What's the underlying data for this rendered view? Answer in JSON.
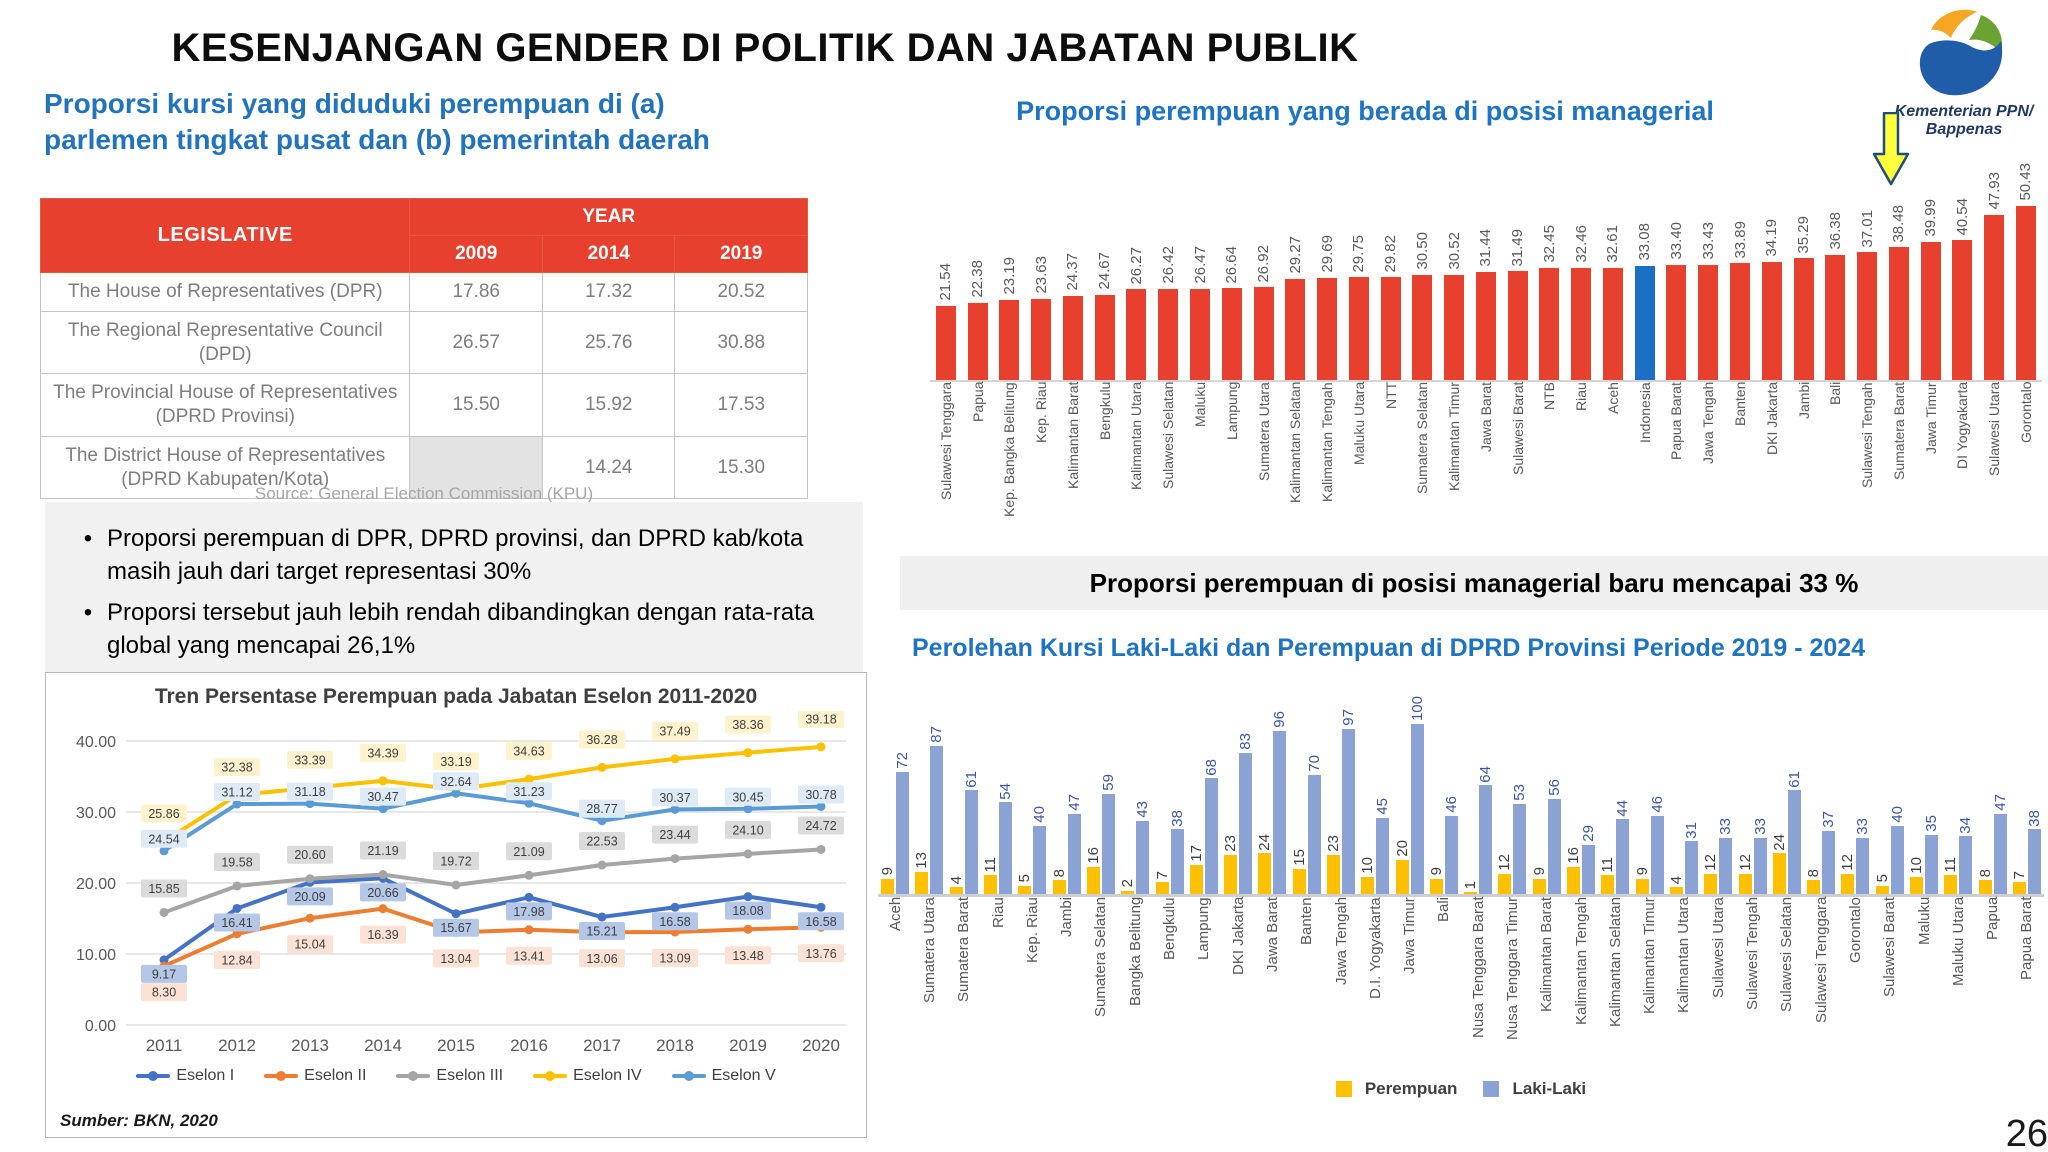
{
  "title": "KESENJANGAN GENDER DI POLITIK DAN JABATAN PUBLIK",
  "logo": {
    "line1": "Kementerian PPN/",
    "line2": "Bappenas"
  },
  "page_number": "26",
  "left": {
    "heading_line1": "Proporsi kursi yang diduduki perempuan di  (a)",
    "heading_line2": "parlemen tingkat pusat dan (b) pemerintah daerah",
    "table": {
      "col_header": "LEGISLATIVE",
      "year_header": "YEAR",
      "years": [
        "2009",
        "2014",
        "2019"
      ],
      "rows": [
        {
          "label": "The House of Representatives (DPR)",
          "values": [
            "17.86",
            "17.32",
            "20.52"
          ]
        },
        {
          "label": "The Regional Representative Council (DPD)",
          "values": [
            "26.57",
            "25.76",
            "30.88"
          ]
        },
        {
          "label": "The Provincial House of Representatives (DPRD Provinsi)",
          "values": [
            "15.50",
            "15.92",
            "17.53"
          ]
        },
        {
          "label": "The District House of Representatives (DPRD Kabupaten/Kota)",
          "values": [
            "",
            "14.24",
            "15.30"
          ]
        }
      ],
      "source": "Source: General Election Commission (KPU)"
    },
    "bullets": [
      "Proporsi perempuan di DPR, DPRD provinsi, dan DPRD kab/kota masih jauh dari target representasi 30%",
      "Proporsi tersebut jauh lebih rendah dibandingkan dengan rata-rata global yang mencapai 26,1%"
    ]
  },
  "right": {
    "banner": "Proporsi perempuan di posisi managerial baru mencapai 33 %"
  },
  "chart_data": [
    {
      "type": "line",
      "title": "Tren Persentase Perempuan pada Jabatan Eselon 2011-2020",
      "x": [
        "2011",
        "2012",
        "2013",
        "2014",
        "2015",
        "2016",
        "2017",
        "2018",
        "2019",
        "2020"
      ],
      "ylim": [
        0,
        40
      ],
      "yticks": [
        0,
        10,
        20,
        30,
        40
      ],
      "grid": true,
      "legend_position": "bottom",
      "source_note": "Sumber: BKN, 2020",
      "series": [
        {
          "name": "Eselon I",
          "color": "#4472C4",
          "label_bg": "#B4C7E7",
          "values": [
            9.17,
            16.41,
            20.09,
            20.66,
            15.67,
            17.98,
            15.21,
            16.58,
            18.08,
            16.58
          ]
        },
        {
          "name": "Eselon II",
          "color": "#ED7D31",
          "label_bg": "#FBE2D5",
          "values": [
            8.3,
            12.84,
            15.04,
            16.39,
            13.04,
            13.41,
            13.06,
            13.09,
            13.48,
            13.76
          ]
        },
        {
          "name": "Eselon III",
          "color": "#A5A5A5",
          "label_bg": "#DBDBDB",
          "values": [
            15.85,
            19.58,
            20.6,
            21.19,
            19.72,
            21.09,
            22.53,
            23.44,
            24.1,
            24.72
          ]
        },
        {
          "name": "Eselon IV",
          "color": "#FFC000",
          "label_bg": "#FFF2CC",
          "values": [
            25.86,
            32.38,
            33.39,
            34.39,
            33.19,
            34.63,
            36.28,
            37.49,
            38.36,
            39.18
          ]
        },
        {
          "name": "Eselon V",
          "color": "#5B9BD5",
          "label_bg": "#DEEBF7",
          "values": [
            24.54,
            31.12,
            31.18,
            30.47,
            32.64,
            31.23,
            28.77,
            30.37,
            30.45,
            30.78
          ]
        }
      ]
    },
    {
      "type": "bar",
      "title": "Proporsi perempuan yang berada di posisi managerial",
      "bar_color": "#E8402F",
      "highlight_color": "#1B6FC5",
      "highlight_index": 22,
      "categories": [
        "Sulawesi Tenggara",
        "Papua",
        "Kep. Bangka Belitung",
        "Kep. Riau",
        "Kalimantan Barat",
        "Bengkulu",
        "Kalimantan Utara",
        "Sulawesi Selatan",
        "Maluku",
        "Lampung",
        "Sumatera Utara",
        "Kalimantan Selatan",
        "Kalimantan Tengah",
        "Maluku Utara",
        "NTT",
        "Sumatera Selatan",
        "Kalimantan Timur",
        "Jawa Barat",
        "Sulawesi Barat",
        "NTB",
        "Riau",
        "Aceh",
        "Indonesia",
        "Papua Barat",
        "Jawa Tengah",
        "Banten",
        "DKI Jakarta",
        "Jambi",
        "Bali",
        "Sulawesi Tengah",
        "Sumatera Barat",
        "Jawa Timur",
        "DI Yogyakarta",
        "Sulawesi Utara",
        "Gorontalo"
      ],
      "values": [
        21.54,
        22.38,
        23.19,
        23.63,
        24.37,
        24.67,
        26.27,
        26.42,
        26.47,
        26.64,
        26.92,
        29.27,
        29.69,
        29.75,
        29.82,
        30.5,
        30.52,
        31.44,
        31.49,
        32.45,
        32.46,
        32.61,
        33.08,
        33.4,
        33.43,
        33.89,
        34.19,
        35.29,
        36.38,
        37.01,
        38.48,
        39.99,
        40.54,
        47.93,
        50.43
      ]
    },
    {
      "type": "bar",
      "title": "Perolehan Kursi Laki-Laki dan Perempuan di DPRD Provinsi Periode 2019 - 2024",
      "categories": [
        "Aceh",
        "Sumatera Utara",
        "Sumatera Barat",
        "Riau",
        "Kep. Riau",
        "Jambi",
        "Sumatera Selatan",
        "Bangka Belitung",
        "Bengkulu",
        "Lampung",
        "DKI Jakarta",
        "Jawa Barat",
        "Banten",
        "Jawa Tengah",
        "D.I. Yogyakarta",
        "Jawa Timur",
        "Bali",
        "Nusa Tenggara Barat",
        "Nusa Tenggara Timur",
        "Kalimantan Barat",
        "Kalimantan Tengah",
        "Kalimantan Selatan",
        "Kalimantan Timur",
        "Kalimantan Utara",
        "Sulawesi Utara",
        "Sulawesi Tengah",
        "Sulawesi Selatan",
        "Sulawesi Tenggara",
        "Gorontalo",
        "Sulawesi Barat",
        "Maluku",
        "Maluku Utara",
        "Papua",
        "Papua Barat"
      ],
      "series": [
        {
          "name": "Perempuan",
          "color": "#FFC000",
          "values": [
            9,
            13,
            4,
            11,
            5,
            8,
            16,
            2,
            7,
            17,
            23,
            24,
            15,
            23,
            10,
            20,
            9,
            1,
            12,
            9,
            16,
            11,
            9,
            4,
            12,
            12,
            24,
            8,
            12,
            5,
            10,
            11,
            8,
            7
          ]
        },
        {
          "name": "Laki-Laki",
          "color": "#8AA3D4",
          "values": [
            72,
            87,
            61,
            54,
            40,
            47,
            59,
            43,
            38,
            68,
            83,
            96,
            70,
            97,
            45,
            100,
            46,
            64,
            53,
            56,
            29,
            44,
            46,
            31,
            33,
            33,
            61,
            37,
            33,
            40,
            35,
            34,
            47,
            38
          ]
        }
      ],
      "legend_position": "bottom"
    }
  ]
}
